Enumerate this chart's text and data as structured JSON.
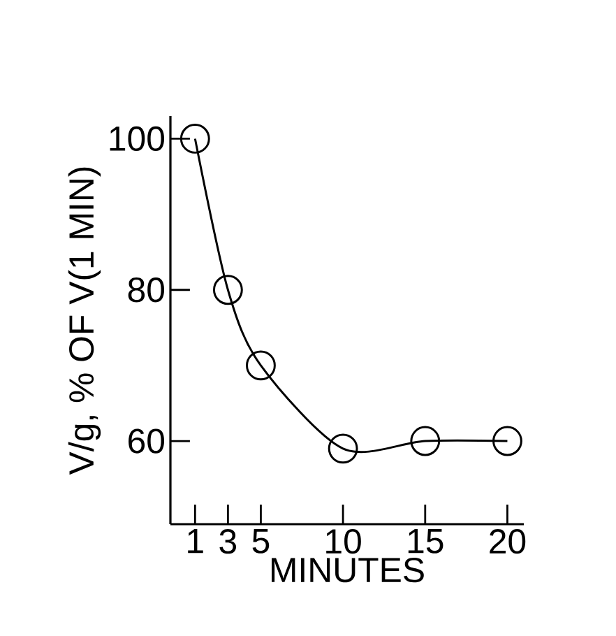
{
  "chart_data": {
    "type": "line",
    "xlabel": "MINUTES",
    "ylabel": "V/g, % OF V(1 MIN)",
    "x": [
      1,
      3,
      5,
      10,
      15,
      20
    ],
    "series": [
      {
        "color": "#000000",
        "values": [
          100,
          80,
          70,
          59,
          60,
          60
        ]
      }
    ],
    "xlim": [
      -0.5,
      21
    ],
    "ylim": [
      49,
      103
    ],
    "xticks": [
      1,
      3,
      5,
      10,
      15,
      20
    ],
    "yticks": [
      60,
      80,
      100
    ],
    "marker": "circle",
    "line_style": "solid",
    "grid": false
  }
}
